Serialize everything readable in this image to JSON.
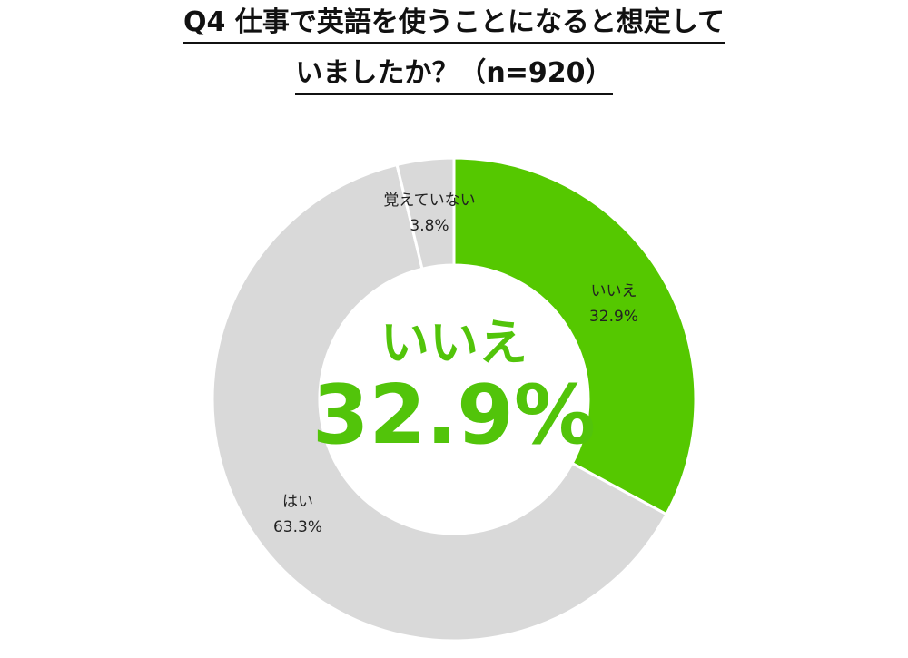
{
  "title": {
    "line1": "Q4 仕事で英語を使うことになると想定して",
    "line2": "いましたか？（n=920）"
  },
  "colors": {
    "highlight": "#55c800",
    "other": "#d9d9d9",
    "separator": "#ffffff",
    "center_text": "#52c40a"
  },
  "chart_data": {
    "type": "pie",
    "donut": true,
    "slices": [
      {
        "label": "いいえ",
        "value": 32.9,
        "value_label": "32.9%",
        "color": "#55c800"
      },
      {
        "label": "はい",
        "value": 63.3,
        "value_label": "63.3%",
        "color": "#d9d9d9"
      },
      {
        "label": "覚えていない",
        "value": 3.8,
        "value_label": "3.8%",
        "color": "#d9d9d9"
      }
    ],
    "center": {
      "label": "いいえ",
      "value_label": "32.9%"
    }
  }
}
